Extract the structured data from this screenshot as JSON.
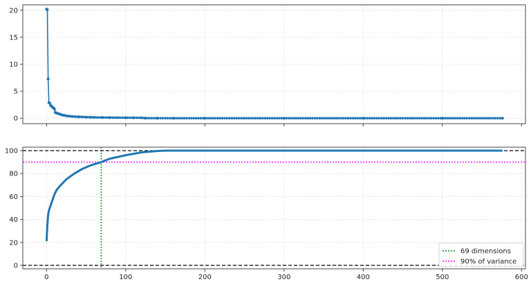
{
  "chart_data": [
    {
      "type": "line",
      "title": "",
      "xlabel": "",
      "ylabel": "",
      "xlim": [
        -30,
        605
      ],
      "ylim": [
        -1,
        21
      ],
      "grid": true,
      "x_ticks": [
        0,
        100,
        200,
        300,
        400,
        500,
        600
      ],
      "x_tick_labels_visible": false,
      "y_ticks": [
        0,
        5,
        10,
        15,
        20
      ],
      "y_tick_labels": [
        "0",
        "5",
        "10",
        "15",
        "20"
      ],
      "series": [
        {
          "name": "",
          "color": "#1f77b4",
          "markers": true,
          "points": [
            [
              0,
              20.2
            ],
            [
              1,
              20.1
            ],
            [
              2,
              7.3
            ],
            [
              3,
              2.9
            ],
            [
              4,
              2.8
            ],
            [
              5,
              2.4
            ],
            [
              6,
              2.3
            ],
            [
              7,
              2.1
            ],
            [
              8,
              2.0
            ],
            [
              9,
              1.9
            ],
            [
              10,
              1.7
            ],
            [
              11,
              1.1
            ],
            [
              12,
              1.0
            ],
            [
              13,
              0.95
            ],
            [
              14,
              0.9
            ],
            [
              16,
              0.8
            ],
            [
              18,
              0.7
            ],
            [
              20,
              0.6
            ],
            [
              22,
              0.55
            ],
            [
              25,
              0.45
            ],
            [
              28,
              0.4
            ],
            [
              32,
              0.35
            ],
            [
              36,
              0.3
            ],
            [
              40,
              0.28
            ],
            [
              45,
              0.25
            ],
            [
              50,
              0.22
            ],
            [
              55,
              0.2
            ],
            [
              60,
              0.17
            ],
            [
              70,
              0.15
            ],
            [
              80,
              0.13
            ],
            [
              90,
              0.12
            ],
            [
              100,
              0.11
            ],
            [
              110,
              0.1
            ],
            [
              120,
              0.09
            ],
            [
              125,
              0.03
            ],
            [
              140,
              0.02
            ],
            [
              160,
              0.01
            ],
            [
              200,
              0.01
            ],
            [
              300,
              0.01
            ],
            [
              400,
              0.01
            ],
            [
              500,
              0.01
            ],
            [
              576,
              0.01
            ]
          ]
        }
      ]
    },
    {
      "type": "line",
      "title": "",
      "xlabel": "",
      "ylabel": "",
      "xlim": [
        -30,
        605
      ],
      "ylim": [
        -3,
        103
      ],
      "grid": true,
      "x_ticks": [
        0,
        100,
        200,
        300,
        400,
        500,
        600
      ],
      "x_tick_labels": [
        "0",
        "100",
        "200",
        "300",
        "400",
        "500",
        "600"
      ],
      "y_ticks": [
        0,
        20,
        40,
        60,
        80,
        100
      ],
      "y_tick_labels": [
        "0",
        "20",
        "40",
        "60",
        "80",
        "100"
      ],
      "legend_position": "bottom-right",
      "series": [
        {
          "name": "",
          "color": "#1f77b4",
          "points": [
            [
              0,
              21
            ],
            [
              1,
              35
            ],
            [
              2,
              44
            ],
            [
              3,
              48
            ],
            [
              5,
              52
            ],
            [
              8,
              58
            ],
            [
              10,
              62
            ],
            [
              13,
              66
            ],
            [
              18,
              70
            ],
            [
              25,
              75
            ],
            [
              35,
              80
            ],
            [
              45,
              84
            ],
            [
              55,
              87
            ],
            [
              69,
              90
            ],
            [
              80,
              93
            ],
            [
              100,
              96
            ],
            [
              120,
              98.5
            ],
            [
              140,
              99.7
            ],
            [
              150,
              100
            ],
            [
              200,
              100
            ],
            [
              300,
              100
            ],
            [
              400,
              100
            ],
            [
              500,
              100
            ],
            [
              576,
              100
            ]
          ]
        }
      ],
      "reference_lines": [
        {
          "orientation": "vertical",
          "value": 69,
          "color": "#008000",
          "style": "dotted",
          "legend": "69 dimensions"
        },
        {
          "orientation": "horizontal",
          "value": 90,
          "color": "#ff00ff",
          "style": "dotted",
          "legend": "90% of variance"
        },
        {
          "orientation": "horizontal",
          "value": 100,
          "color": "#000000",
          "style": "dashed",
          "legend": ""
        },
        {
          "orientation": "horizontal",
          "value": 0,
          "color": "#000000",
          "style": "dashed",
          "legend": ""
        }
      ]
    }
  ]
}
